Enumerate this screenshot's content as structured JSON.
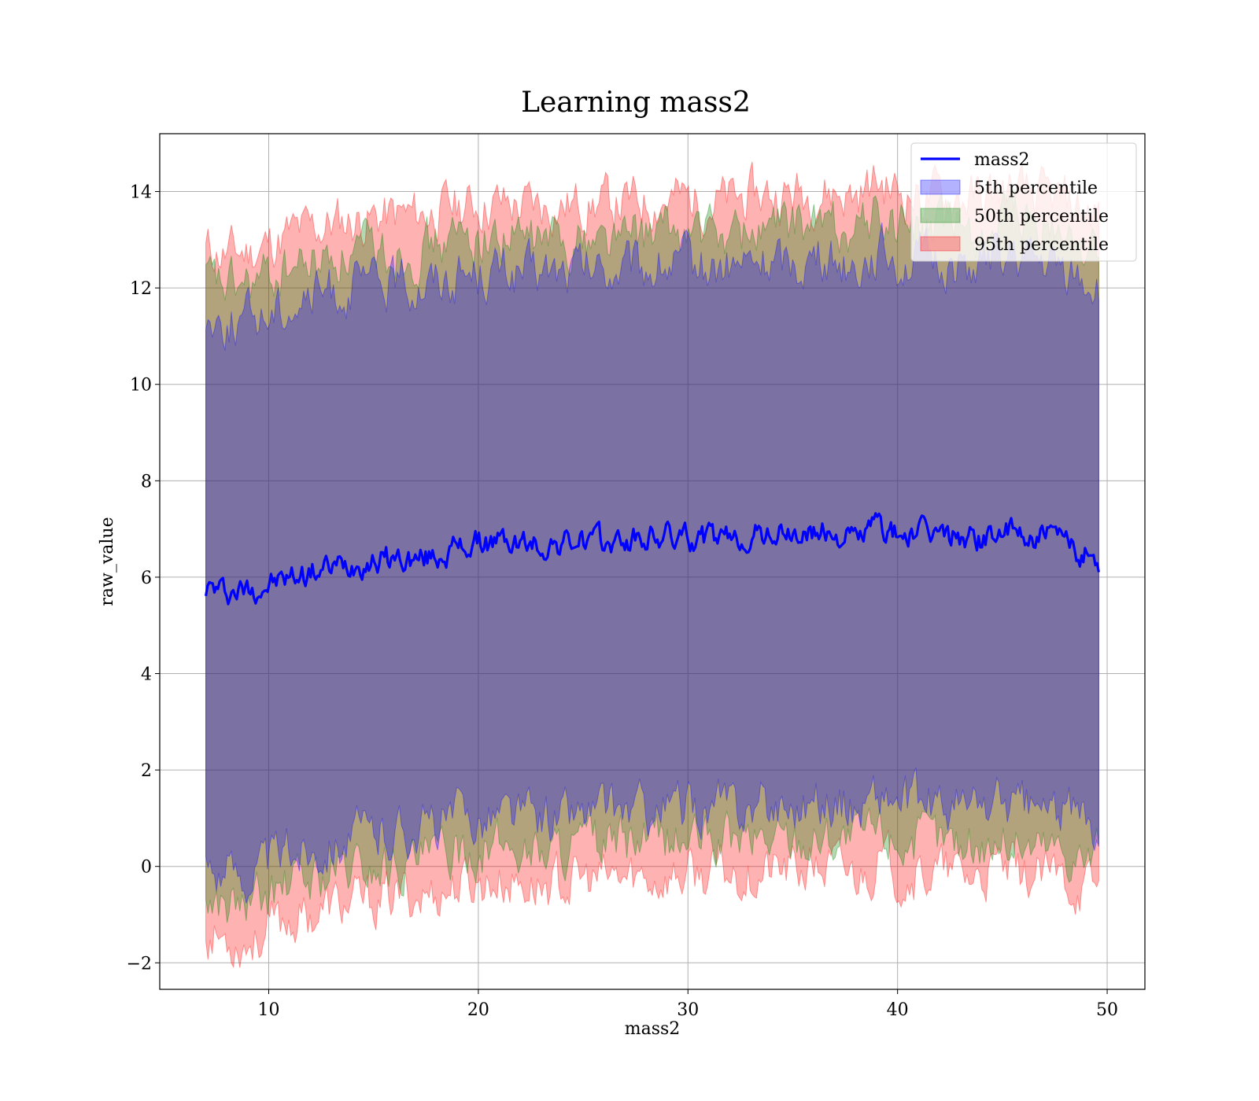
{
  "chart_data": {
    "type": "area",
    "title": "Learning mass2",
    "xlabel": "mass2",
    "ylabel": "raw_value",
    "xlim": [
      4.8,
      51.8
    ],
    "ylim": [
      -2.55,
      15.2
    ],
    "x_ticks": [
      10,
      20,
      30,
      40,
      50
    ],
    "y_ticks": [
      -2,
      0,
      2,
      4,
      6,
      8,
      10,
      12,
      14
    ],
    "x_tick_labels": [
      "10",
      "20",
      "30",
      "40",
      "50"
    ],
    "y_tick_labels": [
      "−2",
      "0",
      "2",
      "4",
      "6",
      "8",
      "10",
      "12",
      "14"
    ],
    "grid": true,
    "legend_position": "top-right",
    "x_range": [
      7.0,
      49.6
    ],
    "series": [
      {
        "name": "mass2",
        "kind": "line",
        "color": "#0000ff",
        "x": [
          7,
          8,
          9,
          10,
          11,
          12,
          13,
          14,
          15,
          16,
          17,
          18,
          19,
          20,
          21,
          22,
          23,
          24,
          25,
          26,
          27,
          28,
          29,
          30,
          31,
          32,
          33,
          34,
          35,
          36,
          37,
          38,
          39,
          40,
          41,
          42,
          43,
          44,
          45,
          46,
          47,
          48,
          49,
          49.6
        ],
        "y": [
          5.8,
          5.7,
          5.75,
          5.85,
          6.0,
          6.1,
          6.2,
          6.3,
          6.35,
          6.4,
          6.35,
          6.45,
          6.6,
          6.7,
          6.75,
          6.7,
          6.65,
          6.7,
          6.75,
          6.7,
          6.75,
          6.8,
          6.85,
          6.8,
          6.8,
          6.75,
          6.85,
          6.9,
          6.85,
          6.9,
          6.9,
          6.8,
          7.1,
          6.85,
          6.9,
          6.9,
          6.85,
          6.8,
          6.95,
          6.85,
          6.85,
          6.7,
          6.5,
          6.35
        ]
      },
      {
        "name": "5th percentile",
        "kind": "band",
        "color": "#0000ff",
        "x": [
          7,
          8,
          9,
          10,
          11,
          12,
          13,
          14,
          15,
          16,
          17,
          18,
          19,
          20,
          21,
          22,
          23,
          24,
          25,
          26,
          27,
          28,
          29,
          30,
          31,
          32,
          33,
          34,
          35,
          36,
          37,
          38,
          39,
          40,
          41,
          42,
          43,
          44,
          45,
          46,
          47,
          48,
          49,
          49.6
        ],
        "lower": [
          0.0,
          -0.1,
          -0.15,
          0.05,
          0.3,
          0.4,
          0.55,
          0.6,
          0.65,
          0.75,
          0.8,
          0.85,
          1.0,
          1.05,
          1.1,
          1.05,
          1.0,
          1.05,
          1.1,
          1.1,
          1.15,
          1.15,
          1.2,
          1.2,
          1.2,
          1.25,
          1.25,
          1.3,
          1.3,
          1.35,
          1.35,
          1.2,
          1.5,
          1.3,
          1.25,
          1.25,
          1.2,
          1.2,
          1.3,
          1.2,
          1.15,
          1.1,
          0.95,
          0.9
        ],
        "upper": [
          11.4,
          11.3,
          11.35,
          11.5,
          11.7,
          11.8,
          11.95,
          12.0,
          12.05,
          12.1,
          12.1,
          12.2,
          12.3,
          12.35,
          12.35,
          12.3,
          12.3,
          12.3,
          12.35,
          12.35,
          12.35,
          12.4,
          12.45,
          12.45,
          12.4,
          12.4,
          12.5,
          12.55,
          12.55,
          12.6,
          12.6,
          12.5,
          12.8,
          12.6,
          12.5,
          12.5,
          12.5,
          12.45,
          12.6,
          12.5,
          12.45,
          12.35,
          12.2,
          12.1
        ]
      },
      {
        "name": "50th percentile",
        "kind": "band",
        "color": "#008000",
        "x": [
          7,
          8,
          9,
          10,
          11,
          12,
          13,
          14,
          15,
          16,
          17,
          18,
          19,
          20,
          21,
          22,
          23,
          24,
          25,
          26,
          27,
          28,
          29,
          30,
          31,
          32,
          33,
          34,
          35,
          36,
          37,
          38,
          39,
          40,
          41,
          42,
          43,
          44,
          45,
          46,
          47,
          48,
          49,
          49.6
        ],
        "lower": [
          -0.7,
          -0.8,
          -0.85,
          -0.65,
          -0.4,
          -0.3,
          -0.15,
          -0.1,
          -0.05,
          0.05,
          0.1,
          0.15,
          0.3,
          0.35,
          0.4,
          0.35,
          0.3,
          0.35,
          0.4,
          0.4,
          0.45,
          0.45,
          0.5,
          0.5,
          0.5,
          0.55,
          0.55,
          0.6,
          0.6,
          0.65,
          0.65,
          0.5,
          0.8,
          0.6,
          0.55,
          0.55,
          0.5,
          0.5,
          0.6,
          0.5,
          0.45,
          0.4,
          0.25,
          0.2
        ],
        "upper": [
          12.1,
          12.0,
          12.05,
          12.2,
          12.4,
          12.5,
          12.65,
          12.7,
          12.75,
          12.8,
          12.8,
          12.9,
          13.0,
          13.05,
          13.05,
          13.0,
          13.0,
          13.0,
          13.05,
          13.05,
          13.05,
          13.1,
          13.15,
          13.15,
          13.1,
          13.1,
          13.2,
          13.25,
          13.25,
          13.3,
          13.3,
          13.2,
          13.5,
          13.3,
          13.2,
          13.2,
          13.2,
          13.15,
          13.3,
          13.2,
          13.15,
          13.05,
          12.9,
          12.8
        ]
      },
      {
        "name": "95th percentile",
        "kind": "band",
        "color": "#ff0000",
        "x": [
          7,
          8,
          9,
          10,
          11,
          12,
          13,
          14,
          15,
          16,
          17,
          18,
          19,
          20,
          21,
          22,
          23,
          24,
          25,
          26,
          27,
          28,
          29,
          30,
          31,
          32,
          33,
          34,
          35,
          36,
          37,
          38,
          39,
          40,
          41,
          42,
          43,
          44,
          45,
          46,
          47,
          48,
          49,
          49.6
        ],
        "lower": [
          -1.4,
          -1.5,
          -1.55,
          -1.35,
          -1.1,
          -1.0,
          -0.85,
          -0.8,
          -0.75,
          -0.65,
          -0.6,
          -0.55,
          -0.4,
          -0.35,
          -0.3,
          -0.35,
          -0.4,
          -0.35,
          -0.3,
          -0.3,
          -0.25,
          -0.25,
          -0.2,
          -0.2,
          -0.2,
          -0.15,
          -0.15,
          -0.1,
          -0.1,
          -0.05,
          -0.05,
          -0.2,
          0.1,
          -0.1,
          -0.15,
          -0.15,
          -0.2,
          -0.2,
          -0.1,
          -0.2,
          -0.25,
          -0.3,
          -0.45,
          -0.5
        ],
        "upper": [
          12.8,
          12.7,
          12.75,
          12.9,
          13.1,
          13.2,
          13.35,
          13.4,
          13.45,
          13.5,
          13.5,
          13.6,
          13.7,
          13.75,
          13.75,
          13.7,
          13.7,
          13.7,
          13.75,
          13.75,
          13.75,
          13.8,
          13.85,
          13.85,
          13.8,
          13.8,
          13.9,
          13.95,
          13.95,
          14.0,
          14.0,
          13.9,
          14.2,
          14.0,
          13.9,
          13.9,
          13.9,
          13.85,
          14.0,
          13.9,
          13.85,
          13.75,
          13.6,
          13.5
        ]
      }
    ]
  }
}
